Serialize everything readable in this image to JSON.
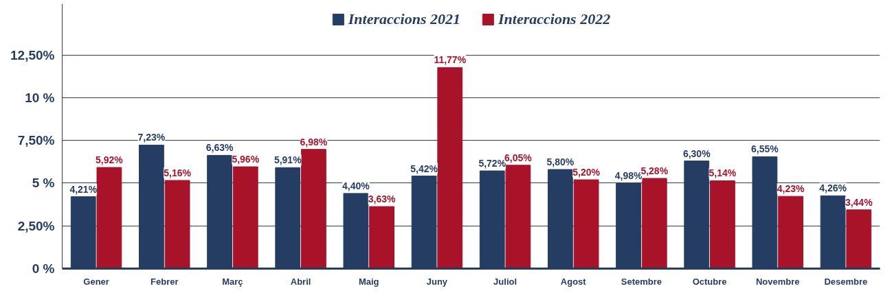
{
  "chart_data": {
    "type": "bar",
    "categories": [
      "Gener",
      "Febrer",
      "Març",
      "Abril",
      "Maig",
      "Juny",
      "Juliol",
      "Agost",
      "Setembre",
      "Octubre",
      "Novembre",
      "Desembre"
    ],
    "series": [
      {
        "name": "Interaccions 2021",
        "color": "#253d62",
        "values": [
          4.21,
          7.23,
          6.63,
          5.91,
          4.4,
          5.42,
          5.72,
          5.8,
          4.98,
          6.3,
          6.55,
          4.26
        ],
        "value_labels": [
          "4,21%",
          "7,23%",
          "6,63%",
          "5,91%",
          "4,40%",
          "5,42%",
          "5,72%",
          "5,80%",
          "4,98%",
          "6,30%",
          "6,55%",
          "4,26%"
        ]
      },
      {
        "name": "Interaccions 2022",
        "color": "#a8132a",
        "values": [
          5.92,
          5.16,
          5.96,
          6.98,
          3.63,
          11.77,
          6.05,
          5.2,
          5.28,
          5.14,
          4.23,
          3.44
        ],
        "value_labels": [
          "5,92%",
          "5,16%",
          "5,96%",
          "6,98%",
          "3,63%",
          "11,77%",
          "6,05%",
          "5,20%",
          "5,28%",
          "5,14%",
          "4,23%",
          "3,44%"
        ]
      }
    ],
    "ylim": [
      0,
      15.5
    ],
    "yticks": [
      {
        "value": 0,
        "label": "0 %"
      },
      {
        "value": 2.5,
        "label": "2,50%"
      },
      {
        "value": 5,
        "label": "5 %"
      },
      {
        "value": 7.5,
        "label": "7,50%"
      },
      {
        "value": 10,
        "label": "10 %"
      },
      {
        "value": 12.5,
        "label": "12,50%"
      }
    ],
    "grid": "y",
    "legend": "top"
  }
}
